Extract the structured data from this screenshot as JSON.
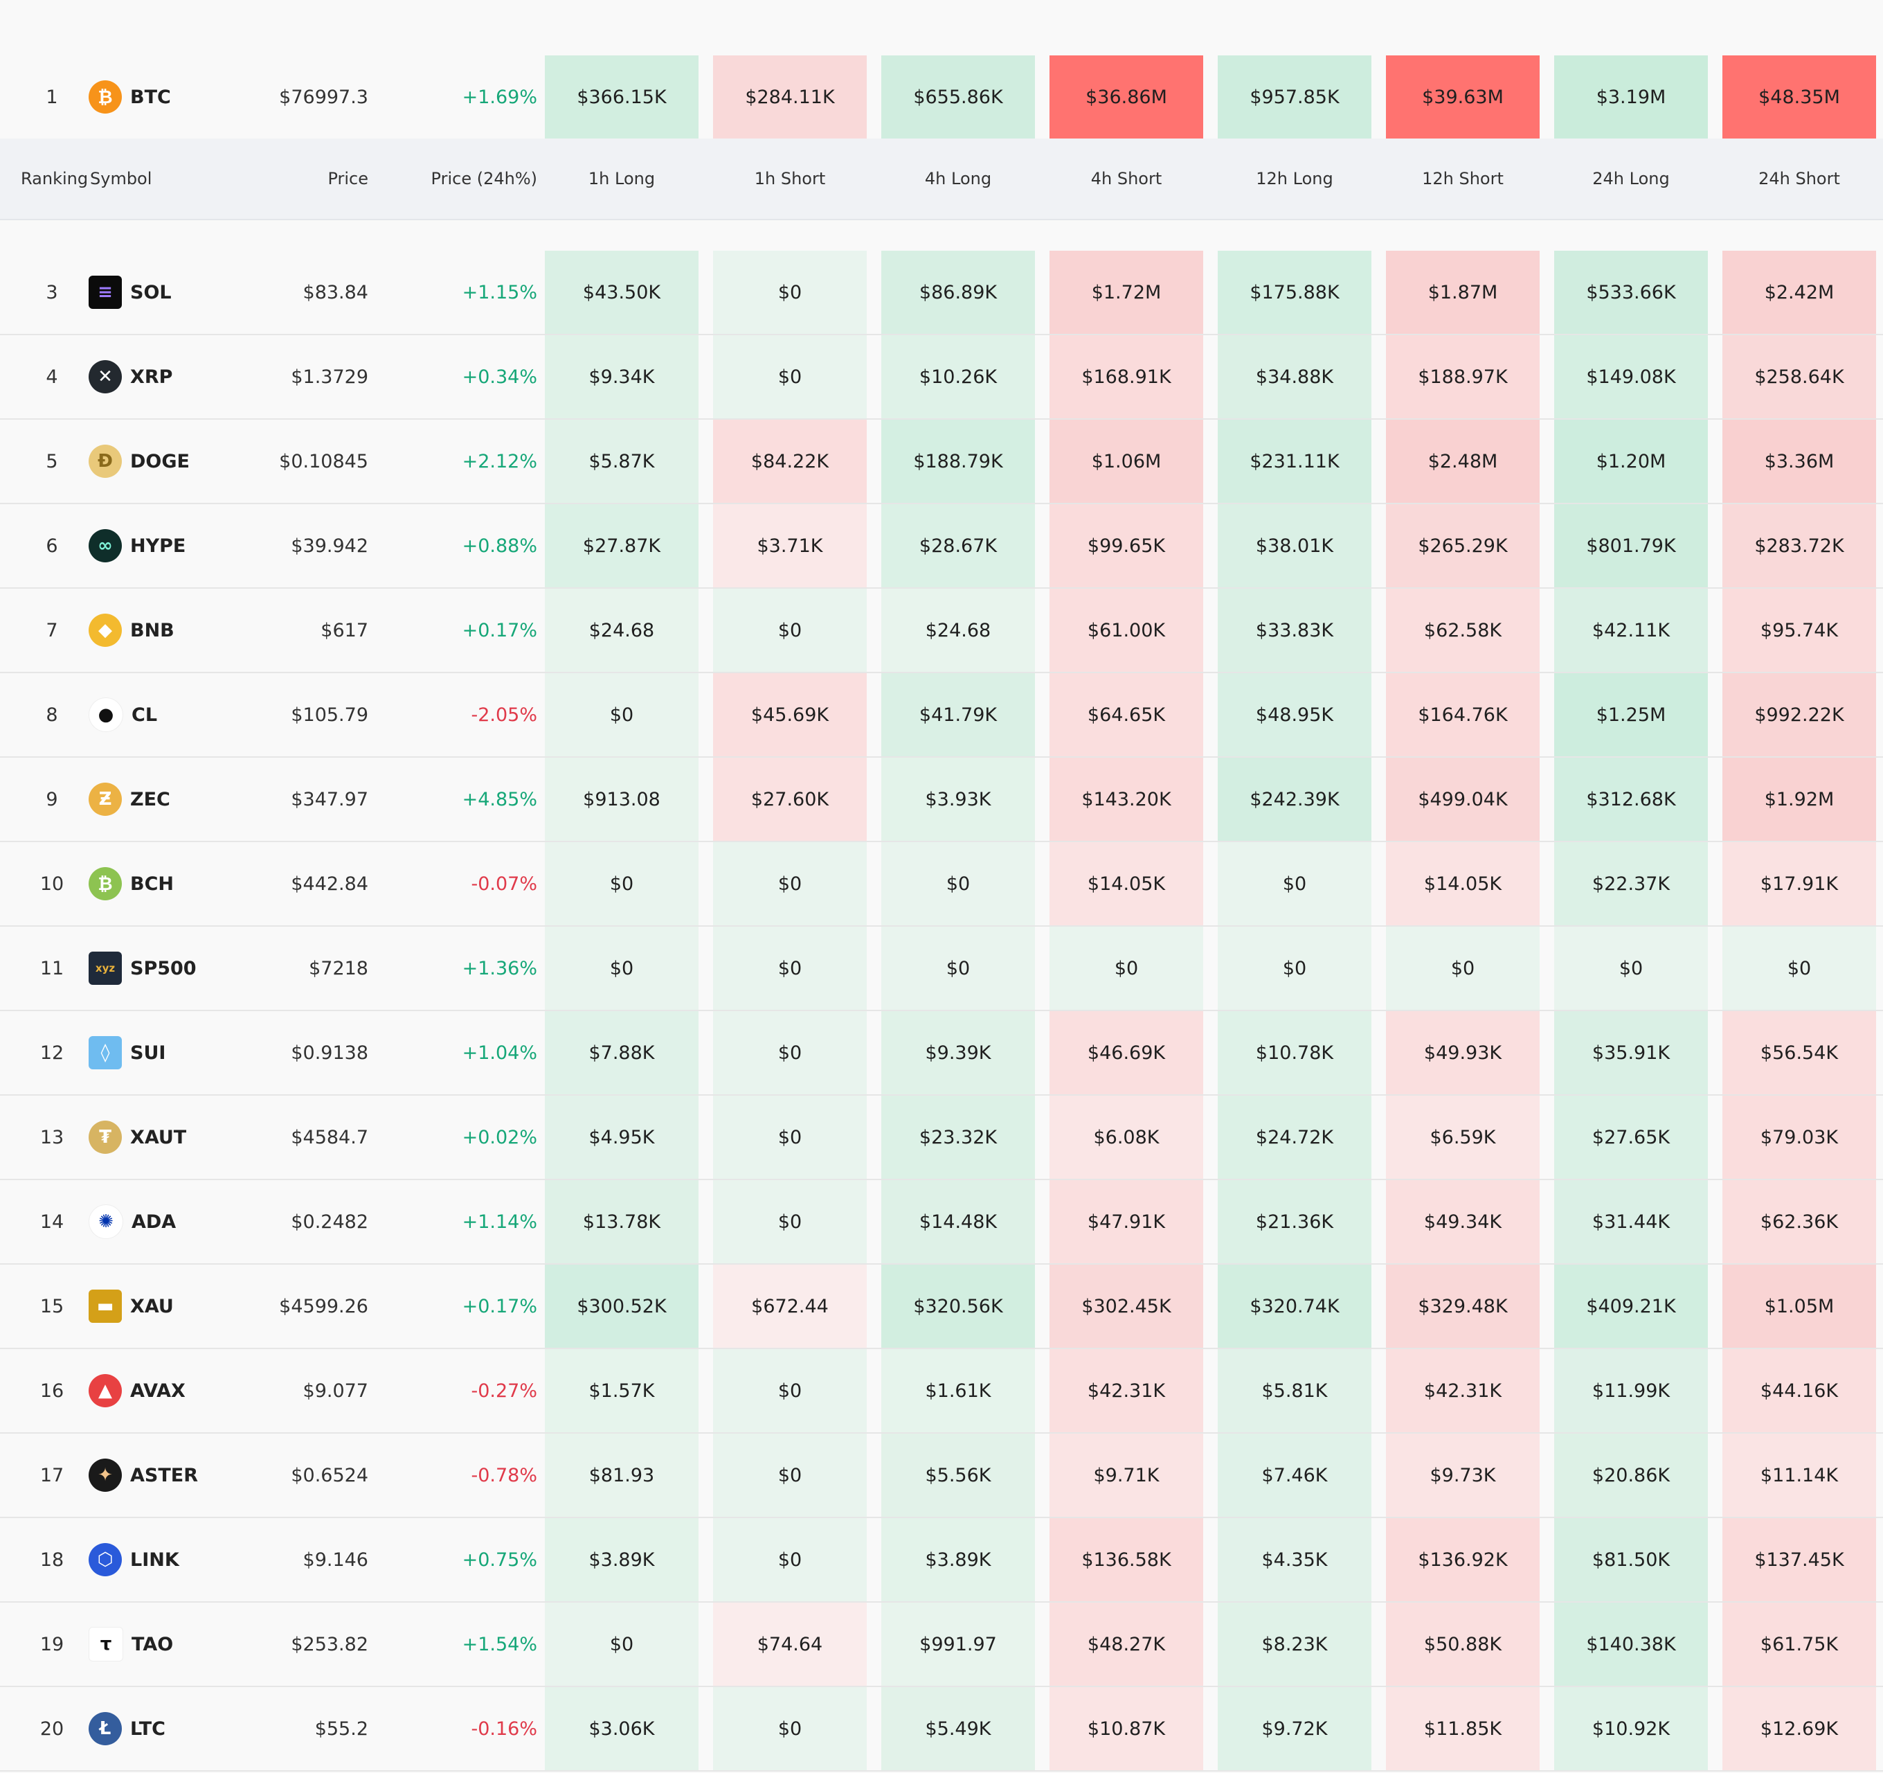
{
  "columns": {
    "ranking": "Ranking",
    "symbol": "Symbol",
    "price": "Price",
    "change": "Price (24h%)",
    "periods": [
      "1h Long",
      "1h Short",
      "4h Long",
      "4h Short",
      "12h Long",
      "12h Short",
      "24h Long",
      "24h Short"
    ]
  },
  "colors": {
    "positive": "#16a778",
    "negative": "#e03a4a",
    "long_tint": "#e6f3ec",
    "short_tint": "#faeaea",
    "long_strong": "#c0e9d6",
    "short_strong": "#ff7370"
  },
  "rows": [
    {
      "rank": "1",
      "symbol": "BTC",
      "icon": "bitcoin-icon",
      "price": "$76997.3",
      "change": "+1.69%",
      "dir": "up",
      "cells": [
        "$366.15K",
        "$284.11K",
        "$655.86K",
        "$36.86M",
        "$957.85K",
        "$39.63M",
        "$3.19M",
        "$48.35M"
      ]
    },
    {
      "rank": "3",
      "symbol": "SOL",
      "icon": "solana-icon",
      "price": "$83.84",
      "change": "+1.15%",
      "dir": "up",
      "cells": [
        "$43.50K",
        "$0",
        "$86.89K",
        "$1.72M",
        "$175.88K",
        "$1.87M",
        "$533.66K",
        "$2.42M"
      ]
    },
    {
      "rank": "4",
      "symbol": "XRP",
      "icon": "xrp-icon",
      "price": "$1.3729",
      "change": "+0.34%",
      "dir": "up",
      "cells": [
        "$9.34K",
        "$0",
        "$10.26K",
        "$168.91K",
        "$34.88K",
        "$188.97K",
        "$149.08K",
        "$258.64K"
      ]
    },
    {
      "rank": "5",
      "symbol": "DOGE",
      "icon": "dogecoin-icon",
      "price": "$0.10845",
      "change": "+2.12%",
      "dir": "up",
      "cells": [
        "$5.87K",
        "$84.22K",
        "$188.79K",
        "$1.06M",
        "$231.11K",
        "$2.48M",
        "$1.20M",
        "$3.36M"
      ]
    },
    {
      "rank": "6",
      "symbol": "HYPE",
      "icon": "hyperliquid-icon",
      "price": "$39.942",
      "change": "+0.88%",
      "dir": "up",
      "cells": [
        "$27.87K",
        "$3.71K",
        "$28.67K",
        "$99.65K",
        "$38.01K",
        "$265.29K",
        "$801.79K",
        "$283.72K"
      ]
    },
    {
      "rank": "7",
      "symbol": "BNB",
      "icon": "bnb-icon",
      "price": "$617",
      "change": "+0.17%",
      "dir": "up",
      "cells": [
        "$24.68",
        "$0",
        "$24.68",
        "$61.00K",
        "$33.83K",
        "$62.58K",
        "$42.11K",
        "$95.74K"
      ]
    },
    {
      "rank": "8",
      "symbol": "CL",
      "icon": "oil-drop-icon",
      "price": "$105.79",
      "change": "-2.05%",
      "dir": "dn",
      "cells": [
        "$0",
        "$45.69K",
        "$41.79K",
        "$64.65K",
        "$48.95K",
        "$164.76K",
        "$1.25M",
        "$992.22K"
      ]
    },
    {
      "rank": "9",
      "symbol": "ZEC",
      "icon": "zcash-icon",
      "price": "$347.97",
      "change": "+4.85%",
      "dir": "up",
      "cells": [
        "$913.08",
        "$27.60K",
        "$3.93K",
        "$143.20K",
        "$242.39K",
        "$499.04K",
        "$312.68K",
        "$1.92M"
      ]
    },
    {
      "rank": "10",
      "symbol": "BCH",
      "icon": "bitcoin-cash-icon",
      "price": "$442.84",
      "change": "-0.07%",
      "dir": "dn",
      "cells": [
        "$0",
        "$0",
        "$0",
        "$14.05K",
        "$0",
        "$14.05K",
        "$22.37K",
        "$17.91K"
      ]
    },
    {
      "rank": "11",
      "symbol": "SP500",
      "icon": "xyz-icon",
      "price": "$7218",
      "change": "+1.36%",
      "dir": "up",
      "cells": [
        "$0",
        "$0",
        "$0",
        "$0",
        "$0",
        "$0",
        "$0",
        "$0"
      ]
    },
    {
      "rank": "12",
      "symbol": "SUI",
      "icon": "sui-icon",
      "price": "$0.9138",
      "change": "+1.04%",
      "dir": "up",
      "cells": [
        "$7.88K",
        "$0",
        "$9.39K",
        "$46.69K",
        "$10.78K",
        "$49.93K",
        "$35.91K",
        "$56.54K"
      ]
    },
    {
      "rank": "13",
      "symbol": "XAUT",
      "icon": "tether-gold-icon",
      "price": "$4584.7",
      "change": "+0.02%",
      "dir": "up",
      "cells": [
        "$4.95K",
        "$0",
        "$23.32K",
        "$6.08K",
        "$24.72K",
        "$6.59K",
        "$27.65K",
        "$79.03K"
      ]
    },
    {
      "rank": "14",
      "symbol": "ADA",
      "icon": "cardano-icon",
      "price": "$0.2482",
      "change": "+1.14%",
      "dir": "up",
      "cells": [
        "$13.78K",
        "$0",
        "$14.48K",
        "$47.91K",
        "$21.36K",
        "$49.34K",
        "$31.44K",
        "$62.36K"
      ]
    },
    {
      "rank": "15",
      "symbol": "XAU",
      "icon": "gold-bars-icon",
      "price": "$4599.26",
      "change": "+0.17%",
      "dir": "up",
      "cells": [
        "$300.52K",
        "$672.44",
        "$320.56K",
        "$302.45K",
        "$320.74K",
        "$329.48K",
        "$409.21K",
        "$1.05M"
      ]
    },
    {
      "rank": "16",
      "symbol": "AVAX",
      "icon": "avalanche-icon",
      "price": "$9.077",
      "change": "-0.27%",
      "dir": "dn",
      "cells": [
        "$1.57K",
        "$0",
        "$1.61K",
        "$42.31K",
        "$5.81K",
        "$42.31K",
        "$11.99K",
        "$44.16K"
      ]
    },
    {
      "rank": "17",
      "symbol": "ASTER",
      "icon": "aster-icon",
      "price": "$0.6524",
      "change": "-0.78%",
      "dir": "dn",
      "cells": [
        "$81.93",
        "$0",
        "$5.56K",
        "$9.71K",
        "$7.46K",
        "$9.73K",
        "$20.86K",
        "$11.14K"
      ]
    },
    {
      "rank": "18",
      "symbol": "LINK",
      "icon": "chainlink-icon",
      "price": "$9.146",
      "change": "+0.75%",
      "dir": "up",
      "cells": [
        "$3.89K",
        "$0",
        "$3.89K",
        "$136.58K",
        "$4.35K",
        "$136.92K",
        "$81.50K",
        "$137.45K"
      ]
    },
    {
      "rank": "19",
      "symbol": "TAO",
      "icon": "bittensor-icon",
      "price": "$253.82",
      "change": "+1.54%",
      "dir": "up",
      "cells": [
        "$0",
        "$74.64",
        "$991.97",
        "$48.27K",
        "$8.23K",
        "$50.88K",
        "$140.38K",
        "$61.75K"
      ]
    },
    {
      "rank": "20",
      "symbol": "LTC",
      "icon": "litecoin-icon",
      "price": "$55.2",
      "change": "-0.16%",
      "dir": "dn",
      "cells": [
        "$3.06K",
        "$0",
        "$5.49K",
        "$10.87K",
        "$9.72K",
        "$11.85K",
        "$10.92K",
        "$12.69K"
      ]
    }
  ]
}
